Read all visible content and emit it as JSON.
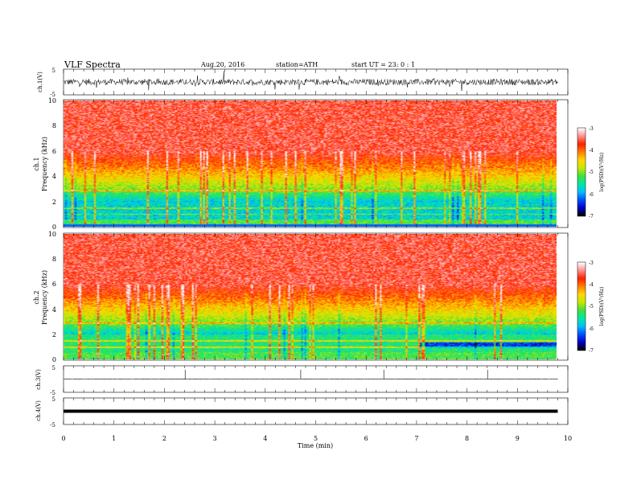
{
  "header": {
    "title": "VLF  Spectra",
    "date": "Aug.20, 2016",
    "station": "station=ATH",
    "start": "start  UT  =   23: 0  : 1"
  },
  "chart_data": [
    {
      "type": "line",
      "ylabel": "ch.1(V)",
      "ytick_labels": [
        "5",
        "-5"
      ],
      "ylim": [
        -5,
        5
      ],
      "description_level": "noisy waveform centered near 0 V, amplitude about ±1.5 V"
    },
    {
      "type": "heatmap",
      "ylabel": "ch.1\nFrequency (kHz)",
      "ylabel_lines": [
        "ch.1",
        "Frequency (kHz)"
      ],
      "ylim": [
        0,
        10
      ],
      "ytick_labels": [
        "0",
        "2",
        "4",
        "6",
        "8",
        "10"
      ],
      "colorbar_label": "log(PSD)(V²/Hz)",
      "colorbar_ticks": [
        "-3",
        "-4",
        "-5",
        "-6",
        "-7"
      ],
      "colorbar_range": [
        -7,
        -3
      ]
    },
    {
      "type": "heatmap",
      "ylabel": "ch.2\nFrequency (kHz)",
      "ylabel_lines": [
        "ch.2",
        "Frequency (kHz)"
      ],
      "ylim": [
        0,
        10
      ],
      "ytick_labels": [
        "0",
        "2",
        "4",
        "6",
        "8",
        "10"
      ],
      "colorbar_label": "log(PSD)(V²/Hz)",
      "colorbar_ticks": [
        "-3",
        "-4",
        "-5",
        "-6",
        "-7"
      ],
      "colorbar_range": [
        -7,
        -3
      ]
    },
    {
      "type": "line",
      "ylabel": "ch.3(V)",
      "ytick_labels": [
        "5",
        "-5"
      ],
      "ylim": [
        -5,
        5
      ],
      "spikes_min": [
        2.4,
        4.7,
        6.35,
        8.4
      ]
    },
    {
      "type": "line",
      "ylabel": "ch.4(V)",
      "ytick_labels": [
        "5",
        "-5"
      ],
      "ylim": [
        -5,
        5
      ],
      "constant_value": 0
    }
  ],
  "xaxis": {
    "label": "Time  (min)",
    "ticks": [
      "0",
      "1",
      "2",
      "3",
      "4",
      "5",
      "6",
      "7",
      "8",
      "9",
      "10"
    ],
    "xlim": [
      0,
      10
    ],
    "data_end": 9.8
  },
  "colors": {
    "colormap": [
      "#000000",
      "#0000c8",
      "#0050ff",
      "#00c0ff",
      "#00e8a0",
      "#40e040",
      "#c8e800",
      "#ffd800",
      "#ff8000",
      "#ff2000",
      "#ff9090",
      "#ffffff"
    ]
  }
}
